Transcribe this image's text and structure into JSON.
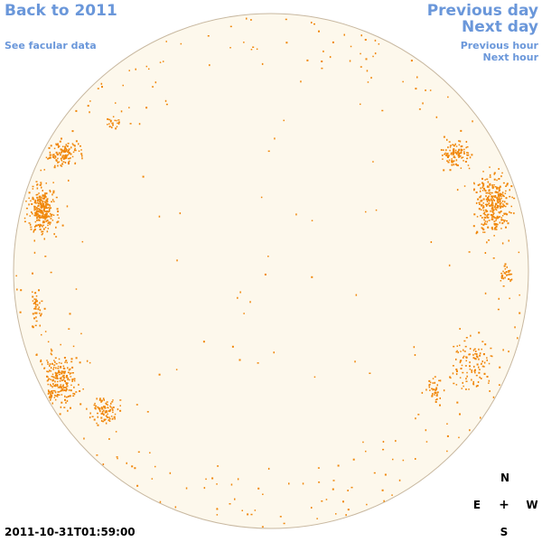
{
  "nav": {
    "back": "Back to 2011",
    "facular": "See facular data",
    "previous_day": "Previous day",
    "next_day": "Next day",
    "previous_hour": "Previous hour",
    "next_hour": "Next hour"
  },
  "timestamp": "2011-10-31T01:59:00",
  "compass": {
    "north": "N",
    "east": "E",
    "center": "+",
    "west": "W",
    "south": "S"
  },
  "colors": {
    "disk_fill": "#fdf8ec",
    "disk_outline": "#c8b8a0",
    "faculae": "#f0870a",
    "links": "#6a97da"
  }
}
